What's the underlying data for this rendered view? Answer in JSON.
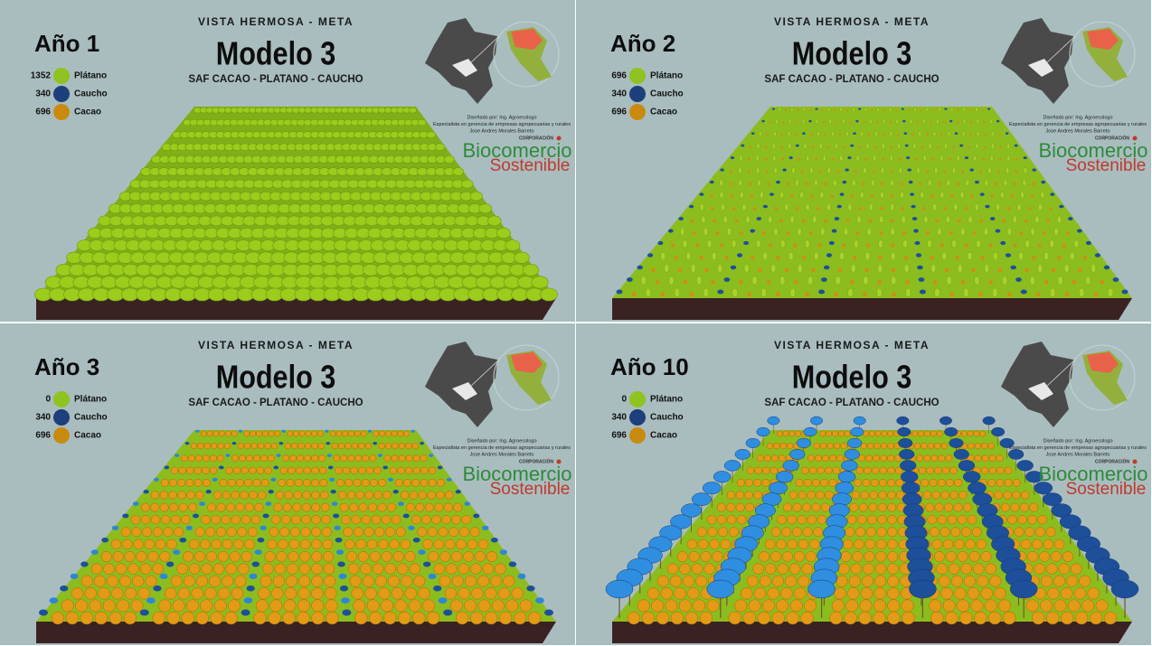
{
  "panels": [
    {
      "location": "VISTA HERMOSA - META",
      "model": "Modelo 3",
      "system": "SAF CACAO - PLATANO - CAUCHO",
      "year": "Año 1",
      "legend": [
        {
          "count": 1352,
          "name": "Plátano",
          "color": "#8fc31f"
        },
        {
          "count": 340,
          "name": "Caucho",
          "color": "#1d3f7a"
        },
        {
          "count": 696,
          "name": "Cacao",
          "color": "#c98a12"
        }
      ],
      "credits": [
        "Diseñado por: Ing. Agroecologo",
        "Especialista en gerencia de empresas agropecuarias y rurales",
        "Jose Andres Morales Barreto"
      ],
      "logo": {
        "top": "CORPORACIÓN",
        "name": "Biocomercio",
        "tag": "Sostenible"
      }
    },
    {
      "location": "VISTA HERMOSA - META",
      "model": "Modelo 3",
      "system": "SAF CACAO - PLATANO - CAUCHO",
      "year": "Año 2",
      "legend": [
        {
          "count": 696,
          "name": "Plátano",
          "color": "#8fc31f"
        },
        {
          "count": 340,
          "name": "Caucho",
          "color": "#1d3f7a"
        },
        {
          "count": 696,
          "name": "Cacao",
          "color": "#c98a12"
        }
      ],
      "credits": [
        "Diseñado por: Ing. Agroecologo",
        "Especialista en gerencia de empresas agropecuarias y rurales",
        "Jose Andres Morales Barreto"
      ],
      "logo": {
        "top": "CORPORACIÓN",
        "name": "Biocomercio",
        "tag": "Sostenible"
      }
    },
    {
      "location": "VISTA HERMOSA - META",
      "model": "Modelo 3",
      "system": "SAF CACAO - PLATANO - CAUCHO",
      "year": "Año 3",
      "legend": [
        {
          "count": 0,
          "name": "Plátano",
          "color": "#8fc31f"
        },
        {
          "count": 340,
          "name": "Caucho",
          "color": "#1d3f7a"
        },
        {
          "count": 696,
          "name": "Cacao",
          "color": "#c98a12"
        }
      ],
      "credits": [
        "Diseñado por: Ing. Agroecologo",
        "Especialista en gerencia de empresas agropecuarias y rurales",
        "Jose Andres Morales Barreto"
      ],
      "logo": {
        "top": "CORPORACIÓN",
        "name": "Biocomercio",
        "tag": "Sostenible"
      }
    },
    {
      "location": "VISTA HERMOSA - META",
      "model": "Modelo 3",
      "system": "SAF CACAO - PLATANO - CAUCHO",
      "year": "Año 10",
      "legend": [
        {
          "count": 0,
          "name": "Plátano",
          "color": "#8fc31f"
        },
        {
          "count": 340,
          "name": "Caucho",
          "color": "#1d3f7a"
        },
        {
          "count": 696,
          "name": "Cacao",
          "color": "#c98a12"
        }
      ],
      "credits": [
        "Diseñado por: Ing. Agroecologo",
        "Especialista en gerencia de empresas agropecuarias y rurales",
        "Jose Andres Morales Barreto"
      ],
      "logo": {
        "top": "CORPORACIÓN",
        "name": "Biocomercio",
        "tag": "Sostenible"
      }
    }
  ]
}
